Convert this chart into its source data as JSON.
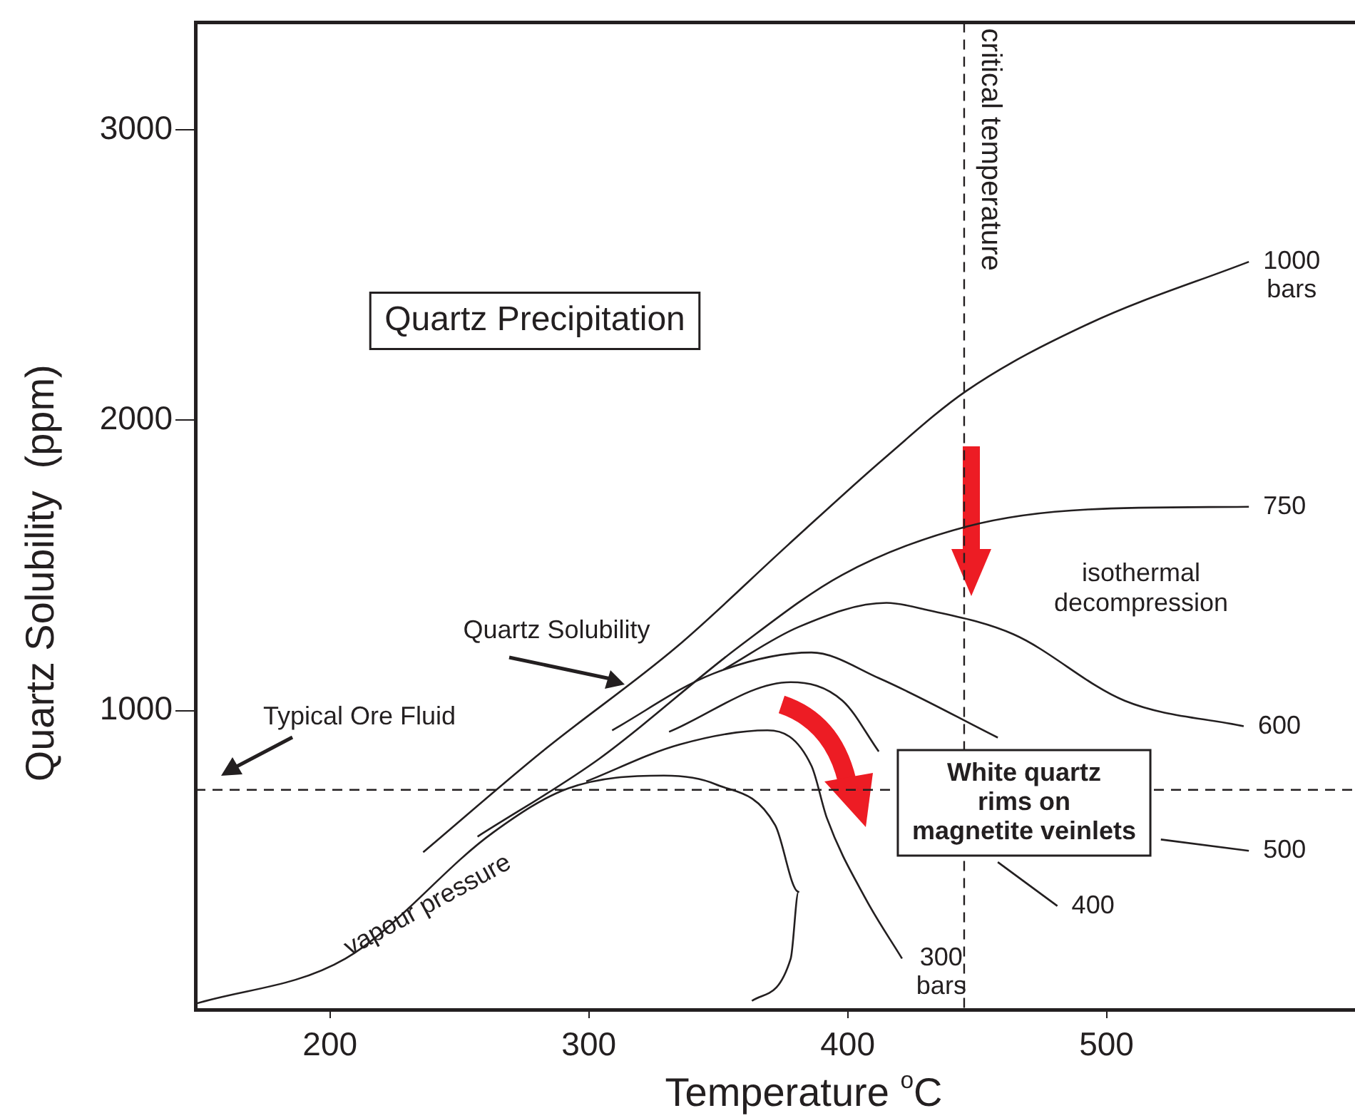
{
  "chart_data": {
    "type": "line",
    "xlabel": "Temperature $^{o}$C",
    "ylabel": "Quartz Solubility  (ppm)",
    "xlim": [
      148,
      596
    ],
    "ylim": [
      -30,
      3370
    ],
    "xticks": [
      200,
      300,
      400,
      500
    ],
    "yticks": [
      1000,
      2000,
      3000
    ],
    "grid": false,
    "legend": false,
    "marker": "none",
    "line_style": "solid",
    "series": [
      {
        "name": "1000 bars",
        "color": "#231f20",
        "x": [
          236,
          282,
          334,
          377,
          414,
          446,
          493,
          555
        ],
        "values": [
          512,
          859,
          1220,
          1571,
          1868,
          2102,
          2332,
          2546
        ]
      },
      {
        "name": "750",
        "color": "#231f20",
        "x": [
          257,
          304,
          358,
          398,
          446,
          493,
          555
        ],
        "values": [
          566,
          834,
          1220,
          1468,
          1634,
          1693,
          1702
        ]
      },
      {
        "name": "600",
        "color": "#231f20",
        "x": [
          352,
          381,
          415,
          431,
          464,
          507,
          553
        ],
        "values": [
          1141,
          1288,
          1371,
          1346,
          1263,
          1034,
          946
        ]
      },
      {
        "name": "500",
        "color": "#231f20",
        "x": [
          309,
          348,
          386,
          412,
          458,
          493,
          521,
          555
        ],
        "values": [
          932,
          1127,
          1200,
          1112,
          907,
          null,
          556,
          517
        ]
      },
      {
        "name": "400",
        "color": "#231f20",
        "x": [
          331,
          378,
          398,
          412,
          436,
          458,
          481
        ],
        "values": [
          927,
          1098,
          1034,
          859,
          null,
          478,
          327
        ]
      },
      {
        "name": "300 bars",
        "color": "#231f20",
        "x": [
          299,
          335,
          369,
          386,
          392,
          407,
          421
        ],
        "values": [
          756,
          883,
          932,
          810,
          629,
          351,
          146
        ]
      },
      {
        "color": "#231f20",
        "x": [
          148,
          206,
          263,
          292,
          329,
          349,
          372,
          381,
          378,
          363
        ],
        "values": [
          -10,
          146,
          580,
          732,
          776,
          746,
          605,
          376,
          146,
          0
        ]
      }
    ],
    "ref_lines": [
      {
        "axis": "x",
        "value": 445,
        "label": "critical temperature",
        "line_style": "dashed"
      },
      {
        "axis": "y",
        "value": 727,
        "line_style": "dashed"
      }
    ],
    "annotations": [
      "Quartz Precipitation",
      {
        "text": "Quartz Solubility",
        "x": 314,
        "y": 1078
      },
      "Typical Ore Fluid",
      "vapour pressure",
      "isothermal\ndecompression",
      "White quartz\nrims on\nmagnetite veinlets"
    ]
  }
}
